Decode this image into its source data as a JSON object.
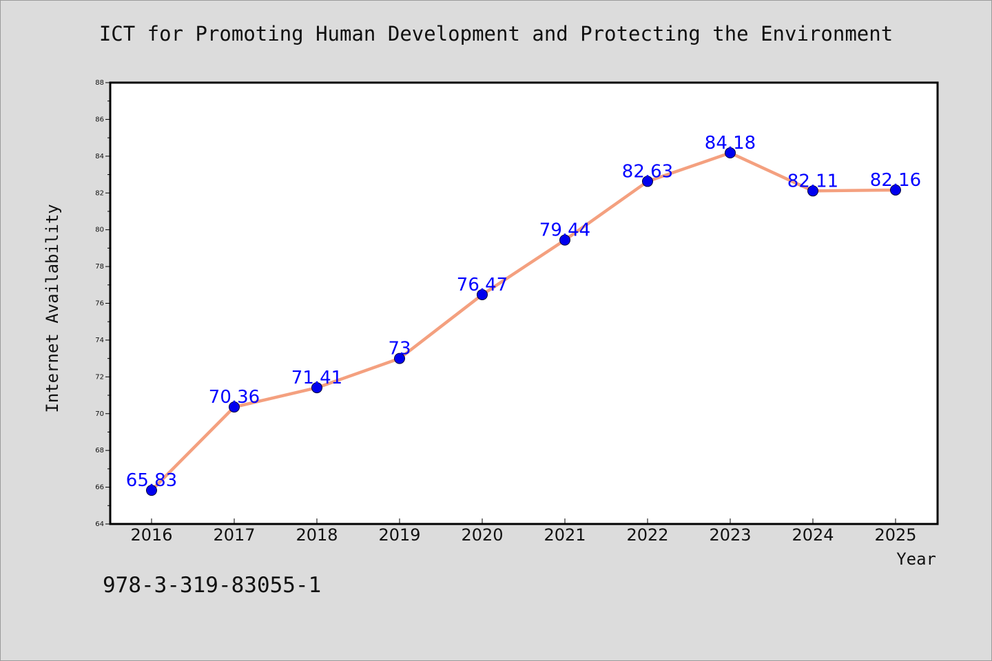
{
  "chart_data": {
    "type": "line",
    "title": "ICT for Promoting Human Development and Protecting the Environment",
    "xlabel": "Year",
    "ylabel": "Internet Availability",
    "x": [
      "2016",
      "2017",
      "2018",
      "2019",
      "2020",
      "2021",
      "2022",
      "2023",
      "2024",
      "2025"
    ],
    "series": [
      {
        "values": [
          65.83,
          70.36,
          71.41,
          73,
          76.47,
          79.44,
          82.63,
          84.18,
          82.11,
          82.16
        ],
        "labels": [
          "65.83",
          "70.36",
          "71.41",
          "73",
          "76.47",
          "79.44",
          "82.63",
          "84.18",
          "82.11",
          "82.16"
        ]
      }
    ],
    "ylim": [
      64,
      88
    ],
    "yticks": [
      "64",
      "66",
      "68",
      "70",
      "72",
      "74",
      "76",
      "78",
      "80",
      "82",
      "84",
      "86",
      "88"
    ],
    "grid": false,
    "legend": "none",
    "colors": {
      "line": "#f4a07f",
      "marker": "#0000ee",
      "data_label": "#0000ff",
      "background": "#dcdcdc",
      "plot_background": "#ffffff"
    }
  },
  "footer": {
    "code": "978-3-319-83055-1"
  }
}
